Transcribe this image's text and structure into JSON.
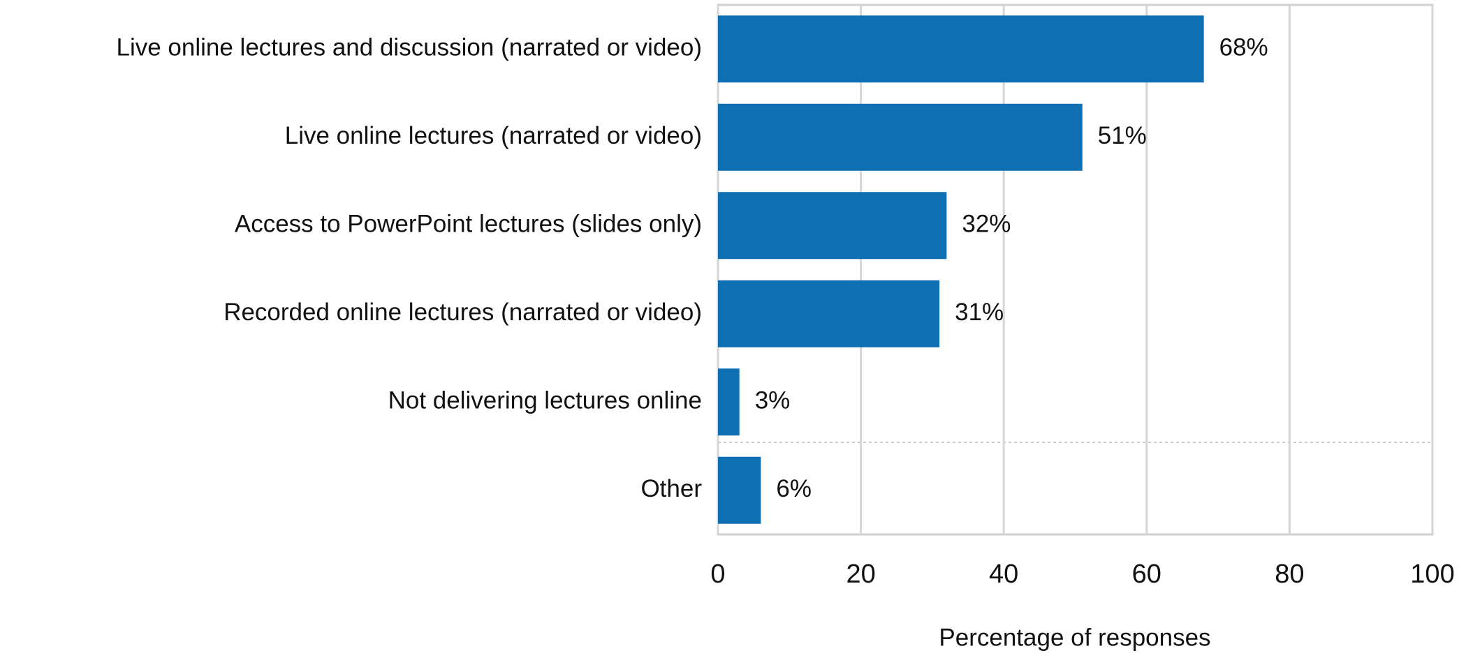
{
  "chart_data": {
    "type": "bar",
    "orientation": "horizontal",
    "categories": [
      "Live online lectures and discussion (narrated or video)",
      "Live online lectures (narrated or video)",
      "Access to PowerPoint lectures (slides only)",
      "Recorded online lectures (narrated or video)",
      "Not delivering lectures online",
      "Other"
    ],
    "values": [
      68,
      51,
      32,
      31,
      3,
      6
    ],
    "value_labels": [
      "68%",
      "51%",
      "32%",
      "31%",
      "3%",
      "6%"
    ],
    "color": "#0e6fb2",
    "xlabel": "Percentage of responses",
    "xlim": [
      0,
      100
    ],
    "xticks": [
      0,
      20,
      40,
      60,
      80,
      100
    ],
    "grid": true
  }
}
